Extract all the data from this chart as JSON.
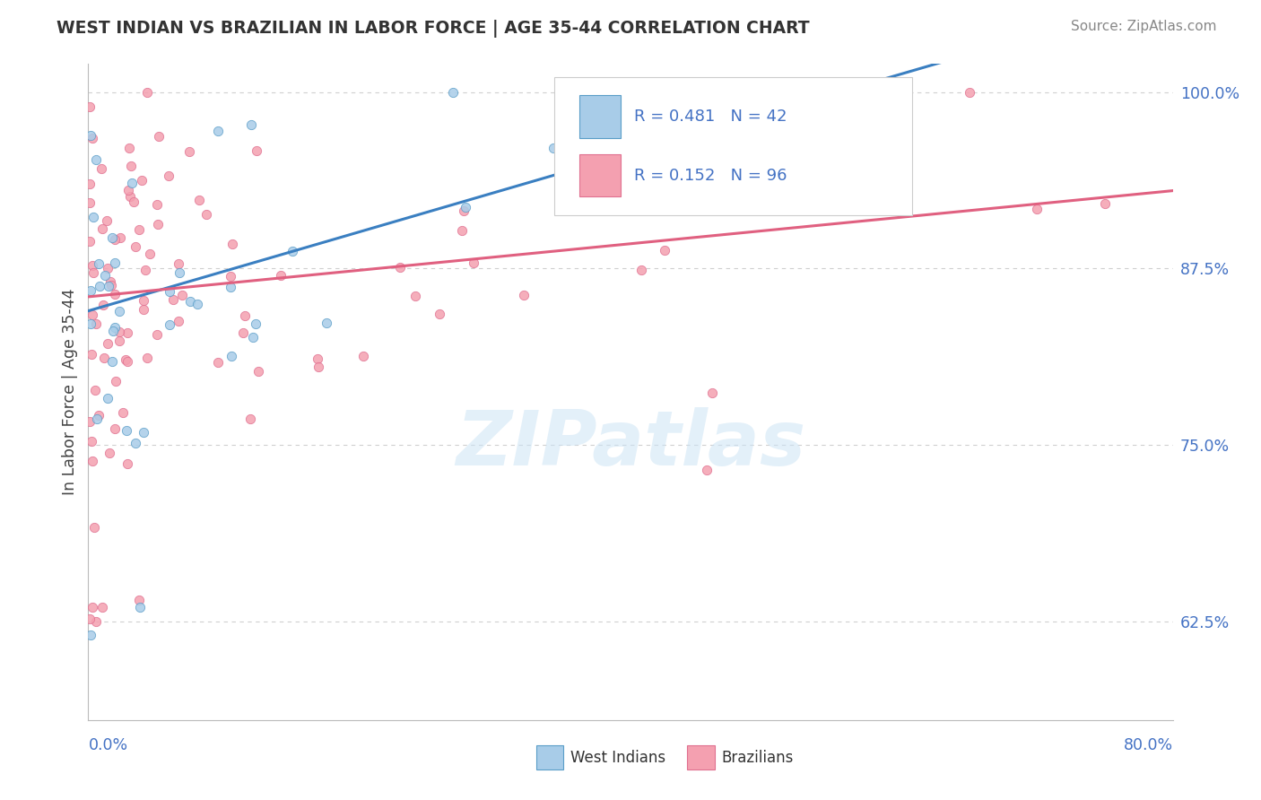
{
  "title": "WEST INDIAN VS BRAZILIAN IN LABOR FORCE | AGE 35-44 CORRELATION CHART",
  "source_text": "Source: ZipAtlas.com",
  "ylabel": "In Labor Force | Age 35-44",
  "y_ticks": [
    0.625,
    0.75,
    0.875,
    1.0
  ],
  "y_tick_labels": [
    "62.5%",
    "75.0%",
    "87.5%",
    "100.0%"
  ],
  "x_range": [
    0.0,
    0.8
  ],
  "y_range": [
    0.555,
    1.02
  ],
  "wi_color_face": "#a8cce8",
  "wi_color_edge": "#5a9ec8",
  "br_color_face": "#f4a0b0",
  "br_color_edge": "#e07090",
  "trend_blue": "#3a7fc1",
  "trend_pink": "#e06080",
  "background_color": "#ffffff",
  "tick_color": "#4472c4",
  "title_color": "#333333",
  "source_color": "#888888",
  "grid_color": "#d0d0d0",
  "legend_text_color": "#4472c4"
}
